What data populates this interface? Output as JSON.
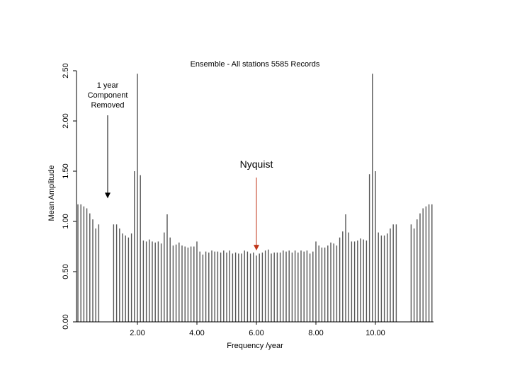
{
  "chart_data": {
    "type": "bar",
    "title": "Ensemble - All stations 5585 Records",
    "xlabel": "Frequency /year",
    "ylabel": "Mean Amplitude",
    "xlim": [
      0,
      12
    ],
    "ylim": [
      0,
      2.5
    ],
    "x_ticks": [
      {
        "value": 2,
        "label": "2.00"
      },
      {
        "value": 4,
        "label": "4.00"
      },
      {
        "value": 6,
        "label": "6.00"
      },
      {
        "value": 8,
        "label": "8.00"
      },
      {
        "value": 10,
        "label": "10.00"
      }
    ],
    "y_ticks": [
      {
        "value": 0,
        "label": "0.00"
      },
      {
        "value": 0.5,
        "label": "0.50"
      },
      {
        "value": 1,
        "label": "1.00"
      },
      {
        "value": 1.5,
        "label": "1.50"
      },
      {
        "value": 2,
        "label": "2.00"
      },
      {
        "value": 2.5,
        "label": "2.50"
      }
    ],
    "bar_color": "#555555",
    "frequency_step": 0.1,
    "values": [
      1.17,
      1.17,
      1.15,
      1.13,
      1.08,
      1.02,
      0.93,
      0.97,
      null,
      null,
      null,
      null,
      0.97,
      0.97,
      0.93,
      0.88,
      0.86,
      0.84,
      0.88,
      1.5,
      2.47,
      1.46,
      0.81,
      0.8,
      0.82,
      0.8,
      0.79,
      0.8,
      0.78,
      0.89,
      1.07,
      0.84,
      0.76,
      0.77,
      0.79,
      0.76,
      0.75,
      0.74,
      0.75,
      0.75,
      0.8,
      0.7,
      0.67,
      0.7,
      0.69,
      0.71,
      0.7,
      0.7,
      0.69,
      0.71,
      0.69,
      0.71,
      0.68,
      0.69,
      0.68,
      0.68,
      0.71,
      0.7,
      0.68,
      0.69,
      0.66,
      0.68,
      0.69,
      0.71,
      0.72,
      0.68,
      0.69,
      0.69,
      0.69,
      0.71,
      0.7,
      0.71,
      0.69,
      0.71,
      0.69,
      0.71,
      0.7,
      0.71,
      0.68,
      0.7,
      0.8,
      0.76,
      0.74,
      0.74,
      0.76,
      0.79,
      0.78,
      0.76,
      0.84,
      0.9,
      1.07,
      0.89,
      0.8,
      0.8,
      0.81,
      0.83,
      0.82,
      0.81,
      1.47,
      2.47,
      1.5,
      0.89,
      0.86,
      0.86,
      0.88,
      0.93,
      0.97,
      0.97,
      null,
      null,
      null,
      null,
      0.97,
      0.93,
      1.02,
      1.08,
      1.13,
      1.15,
      1.17,
      1.17
    ],
    "annotations": [
      {
        "id": "removed",
        "lines": [
          "1 year",
          "Component",
          "Removed"
        ],
        "x": 1.0,
        "arrow_to_y": 1.23,
        "arrow_color": "#000000"
      },
      {
        "id": "nyquist",
        "lines": [
          "Nyquist"
        ],
        "x": 6.0,
        "arrow_to_y": 0.71,
        "arrow_color": "#c0361a"
      }
    ]
  }
}
